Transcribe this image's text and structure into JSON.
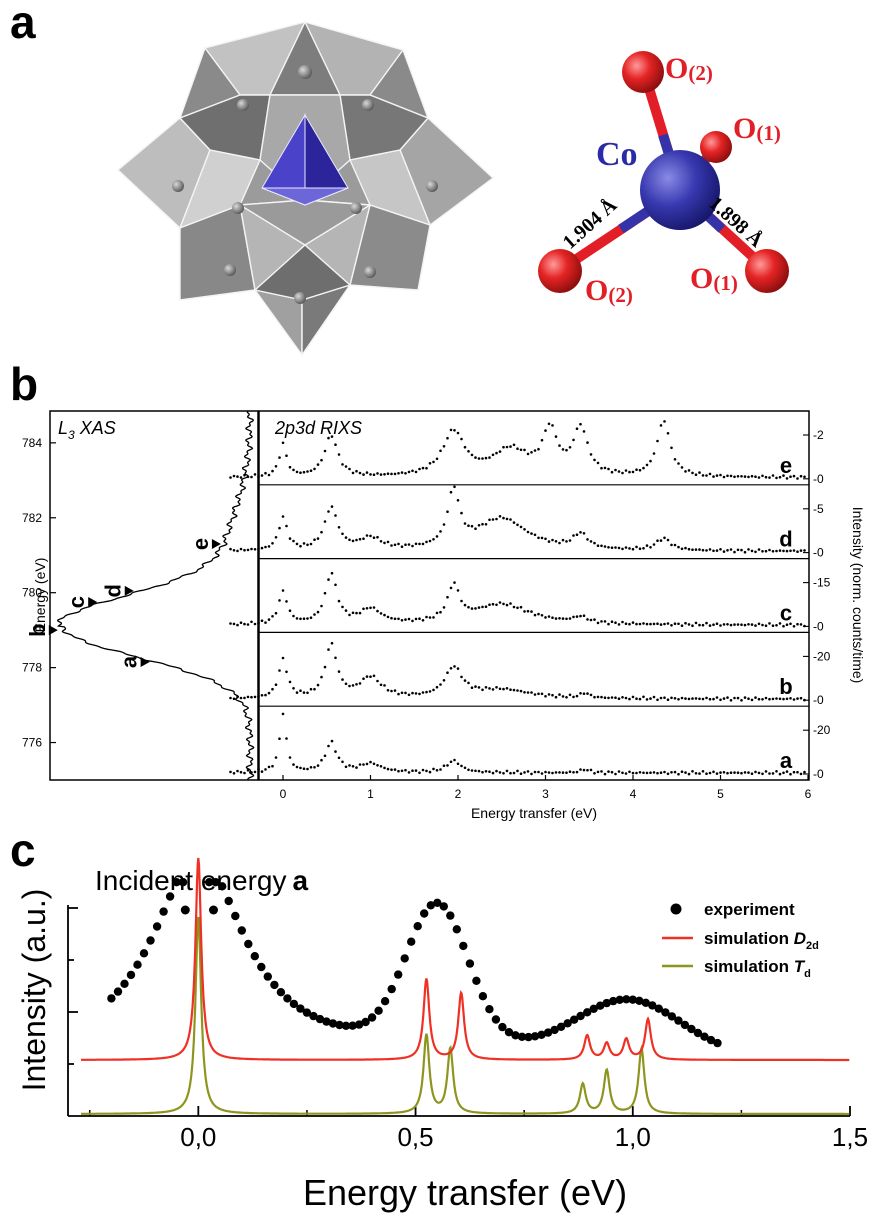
{
  "panels": {
    "a": "a",
    "b": "b",
    "c": "c"
  },
  "molecule": {
    "center_atom": "Co",
    "atoms": [
      {
        "label_main": "O",
        "label_sub": "(2)"
      },
      {
        "label_main": "O",
        "label_sub": "(1)"
      },
      {
        "label_main": "O",
        "label_sub": "(2)"
      },
      {
        "label_main": "O",
        "label_sub": "(1)"
      }
    ],
    "bond_left": "1.904 Å",
    "bond_right": "1.898 Å",
    "colors": {
      "cobalt": "#3434a8",
      "oxygen": "#e21f26",
      "polyhedra": "#8d8d8d",
      "tetrahedron": "#3b33b5"
    }
  },
  "xas": {
    "title_main": "L",
    "title_sub": "3",
    "title_rest": " XAS",
    "ylabel": "Energy (eV)",
    "yticks": [
      "776",
      "778",
      "780",
      "782",
      "784"
    ],
    "markers": [
      "a",
      "b",
      "c",
      "d",
      "e"
    ]
  },
  "rixs": {
    "title": "2p3d RIXS",
    "xlabel": "Energy transfer (eV)",
    "xticks": [
      "0",
      "1",
      "2",
      "3",
      "4",
      "5",
      "6"
    ],
    "ylabel": "Intensity (norm. counts/time)",
    "traces": [
      {
        "label": "e",
        "yticks": [
          "0",
          "2"
        ]
      },
      {
        "label": "d",
        "yticks": [
          "0",
          "5"
        ]
      },
      {
        "label": "c",
        "yticks": [
          "0",
          "15"
        ]
      },
      {
        "label": "b",
        "yticks": [
          "0",
          "20"
        ]
      },
      {
        "label": "a",
        "yticks": [
          "0",
          "20"
        ]
      }
    ]
  },
  "chart_data": {
    "type": "line",
    "title_main": "Incident energy",
    "title_bold": "a",
    "xlabel": "Energy transfer (eV)",
    "ylabel": "Intensity (a.u.)",
    "xlim": [
      -0.3,
      1.5
    ],
    "xticks": [
      "0,0",
      "0,5",
      "1,0",
      "1,5"
    ],
    "legend_position": "top-right",
    "series": [
      {
        "name": "experiment",
        "color": "#000000",
        "marker": "circle"
      },
      {
        "name": "simulation ",
        "name_italic": "D",
        "name_sub": "2d",
        "color": "#ee3124",
        "peaks": [
          0.0,
          0.525,
          0.605,
          0.895,
          0.94,
          0.985,
          1.035
        ]
      },
      {
        "name": "simulation ",
        "name_italic": "T",
        "name_sub": "d",
        "color": "#8d951f",
        "peaks": [
          0.0,
          0.525,
          0.58,
          0.885,
          0.94,
          1.02
        ]
      }
    ]
  }
}
